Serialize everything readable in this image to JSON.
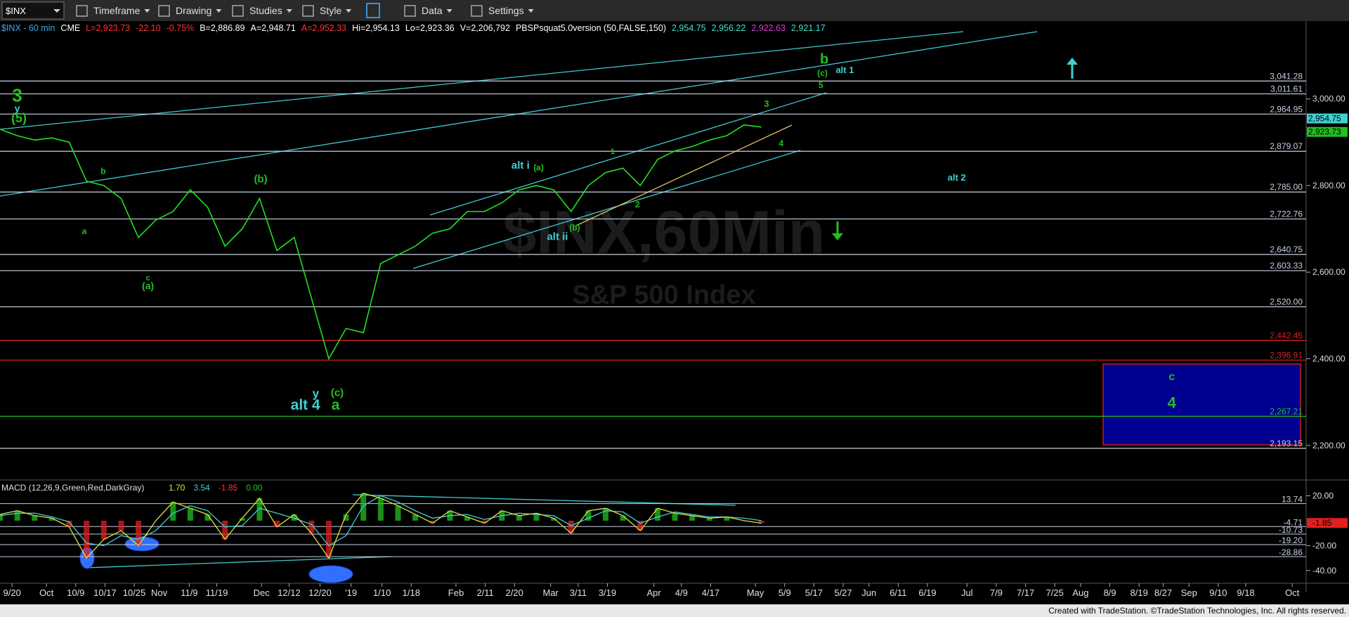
{
  "toolbar": {
    "symbol": "$INX",
    "items": [
      "Timeframe",
      "Drawing",
      "Studies",
      "Style",
      "Data",
      "Settings"
    ]
  },
  "header": [
    {
      "text": "$INX - 60 min",
      "color": "#3fa9f5"
    },
    {
      "text": "CME",
      "color": "#ffffff"
    },
    {
      "text": "L=2,923.73",
      "color": "#ff3030"
    },
    {
      "text": "-22.10",
      "color": "#ff3030"
    },
    {
      "text": "-0.75%",
      "color": "#ff3030"
    },
    {
      "text": "B=2,886.89",
      "color": "#ffffff"
    },
    {
      "text": "A=2,948.71",
      "color": "#ffffff"
    },
    {
      "text": "A=2,952.33",
      "color": "#ff3030"
    },
    {
      "text": "Hi=2,954.13",
      "color": "#ffffff"
    },
    {
      "text": "Lo=2,923.36",
      "color": "#ffffff"
    },
    {
      "text": "V=2,206,792",
      "color": "#ffffff"
    },
    {
      "text": "PBSPsquat5.0version (50,FALSE,150)",
      "color": "#ffffff"
    },
    {
      "text": "2,954.75",
      "color": "#40e0d0"
    },
    {
      "text": "2,956.22",
      "color": "#40e0d0"
    },
    {
      "text": "2,922.63",
      "color": "#d040d0"
    },
    {
      "text": "2,921.17",
      "color": "#40e0d0"
    }
  ],
  "watermark": {
    "symbol": "$INX,60Min",
    "name": "S&P 500 Index"
  },
  "price_pane": {
    "ylim": [
      2125,
      3178
    ],
    "yticks": [
      {
        "value": 3000,
        "label": "3,000.00"
      },
      {
        "value": 2800,
        "label": "2,800.00"
      },
      {
        "value": 2600,
        "label": "2,600.00"
      },
      {
        "value": 2400,
        "label": "2,400.00"
      },
      {
        "value": 2200,
        "label": "2,200.00"
      }
    ],
    "levels": [
      {
        "value": 3041.28,
        "label": "3,041.28",
        "color": "#c8d0e0"
      },
      {
        "value": 3011.61,
        "label": "3,011.61",
        "color": "#c8d0e0"
      },
      {
        "value": 2964.95,
        "label": "2,964.95",
        "color": "#c8d0e0"
      },
      {
        "value": 2879.07,
        "label": "2,879.07",
        "color": "#c8d0e0"
      },
      {
        "value": 2785.0,
        "label": "2,785.00",
        "color": "#c8d0e0"
      },
      {
        "value": 2722.76,
        "label": "2,722.76",
        "color": "#c8d0e0"
      },
      {
        "value": 2640.75,
        "label": "2,640.75",
        "color": "#c8d0e0"
      },
      {
        "value": 2603.33,
        "label": "2,603.33",
        "color": "#c8d0e0"
      },
      {
        "value": 2520.0,
        "label": "2,520.00",
        "color": "#c8d0e0"
      },
      {
        "value": 2442.45,
        "label": "2,442.45",
        "color": "#e02020"
      },
      {
        "value": 2396.91,
        "label": "2,396.91",
        "color": "#e02020"
      },
      {
        "value": 2267.21,
        "label": "2,267.21",
        "color": "#20c020"
      },
      {
        "value": 2193.15,
        "label": "2,193.15",
        "color": "#c8d0e0"
      }
    ],
    "tags": [
      {
        "value": 2954.75,
        "label": "2,954.75",
        "color": "#40d0d0"
      },
      {
        "value": 2923.73,
        "label": "2,923.73",
        "color": "#20c020"
      }
    ],
    "close": [
      2930,
      2915,
      2905,
      2910,
      2900,
      2810,
      2800,
      2770,
      2680,
      2720,
      2740,
      2790,
      2750,
      2660,
      2700,
      2770,
      2650,
      2680,
      2540,
      2400,
      2470,
      2460,
      2620,
      2640,
      2660,
      2690,
      2700,
      2740,
      2740,
      2760,
      2790,
      2800,
      2790,
      2740,
      2800,
      2830,
      2840,
      2800,
      2860,
      2880,
      2890,
      2905,
      2915,
      2940,
      2935
    ],
    "line_color": "#20e020"
  },
  "annotations": [
    {
      "text": "3",
      "color": "#20c020"
    },
    {
      "text": "y",
      "color": "#40d0d0"
    },
    {
      "text": "(5)",
      "color": "#20c020"
    },
    {
      "text": "b",
      "color": "#20c020"
    },
    {
      "text": "a",
      "color": "#20c020"
    },
    {
      "text": "c",
      "color": "#20c020"
    },
    {
      "text": "(a)",
      "color": "#20c020"
    },
    {
      "text": "(b)",
      "color": "#20c020"
    },
    {
      "text": "y",
      "color": "#40d0d0"
    },
    {
      "text": "alt 4",
      "color": "#40d0d0"
    },
    {
      "text": "(c)",
      "color": "#20c020"
    },
    {
      "text": "a",
      "color": "#20c020"
    },
    {
      "text": "alt i",
      "color": "#40d0d0"
    },
    {
      "text": "(a)",
      "color": "#20c020"
    },
    {
      "text": "1",
      "color": "#20c020"
    },
    {
      "text": "(b)",
      "color": "#20c020"
    },
    {
      "text": "alt ii",
      "color": "#40d0d0"
    },
    {
      "text": "2",
      "color": "#20c020"
    },
    {
      "text": "3",
      "color": "#20c020"
    },
    {
      "text": "4",
      "color": "#20c020"
    },
    {
      "text": "5",
      "color": "#20c020"
    },
    {
      "text": "(c)",
      "color": "#20c020"
    },
    {
      "text": "b",
      "color": "#20c020"
    },
    {
      "text": "alt 1",
      "color": "#40d0d0"
    },
    {
      "text": "alt 2",
      "color": "#40d0d0"
    },
    {
      "text": "c",
      "color": "#20c020"
    },
    {
      "text": "4",
      "color": "#20c020"
    }
  ],
  "macd_pane": {
    "title": "MACD (12,26,9,Green,Red,DarkGray)",
    "readings": [
      {
        "text": "1.70",
        "color": "#e0e040"
      },
      {
        "text": "3.54",
        "color": "#40d0d0"
      },
      {
        "text": "-1.85",
        "color": "#ff3030"
      },
      {
        "text": "0.00",
        "color": "#20c020"
      }
    ],
    "ylim": [
      -48,
      31
    ],
    "yticks": [
      {
        "value": 20,
        "label": "20.00"
      },
      {
        "value": -20,
        "label": "-20.00"
      },
      {
        "value": -40,
        "label": "-40.00"
      }
    ],
    "levels": [
      {
        "value": 13.74,
        "label": "13.74"
      },
      {
        "value": -4.71,
        "label": "-4.71"
      },
      {
        "value": -10.73,
        "label": "-10.73"
      },
      {
        "value": -19.2,
        "label": "-19.20"
      },
      {
        "value": -28.86,
        "label": "-28.86"
      }
    ],
    "tag": {
      "value": -1.85,
      "label": "-1.85"
    },
    "macd": [
      5,
      8,
      4,
      2,
      -5,
      -30,
      -15,
      -8,
      -20,
      0,
      15,
      10,
      5,
      -15,
      2,
      18,
      -5,
      5,
      -10,
      -30,
      5,
      22,
      18,
      12,
      5,
      -2,
      8,
      3,
      -2,
      8,
      4,
      6,
      2,
      -10,
      8,
      10,
      4,
      -8,
      10,
      6,
      4,
      2,
      3,
      0,
      -2
    ],
    "signal": [
      4,
      6,
      6,
      3,
      -1,
      -18,
      -20,
      -12,
      -15,
      -8,
      6,
      12,
      8,
      -5,
      -4,
      10,
      6,
      2,
      -3,
      -20,
      -12,
      12,
      20,
      15,
      8,
      2,
      4,
      5,
      1,
      4,
      6,
      5,
      4,
      -4,
      2,
      8,
      7,
      -2,
      3,
      7,
      5,
      3,
      3,
      2,
      0
    ],
    "macd_color": "#e0e040",
    "signal_color": "#40d0d0"
  },
  "x_labels": [
    "9/20",
    "Oct",
    "10/9",
    "10/17",
    "10/25",
    "Nov",
    "11/9",
    "11/19",
    "Dec",
    "12/12",
    "12/20",
    "'19",
    "1/10",
    "1/18",
    "Feb",
    "2/11",
    "2/20",
    "Mar",
    "3/11",
    "3/19",
    "Apr",
    "4/9",
    "4/17",
    "May",
    "5/9",
    "5/17",
    "5/27",
    "Jun",
    "6/11",
    "6/19",
    "Jul",
    "7/9",
    "7/17",
    "7/25",
    "Aug",
    "8/9",
    "8/19",
    "8/27",
    "Sep",
    "9/10",
    "9/18",
    "Oct"
  ],
  "footer": "Created with TradeStation. ©TradeStation Technologies, Inc. All rights reserved."
}
